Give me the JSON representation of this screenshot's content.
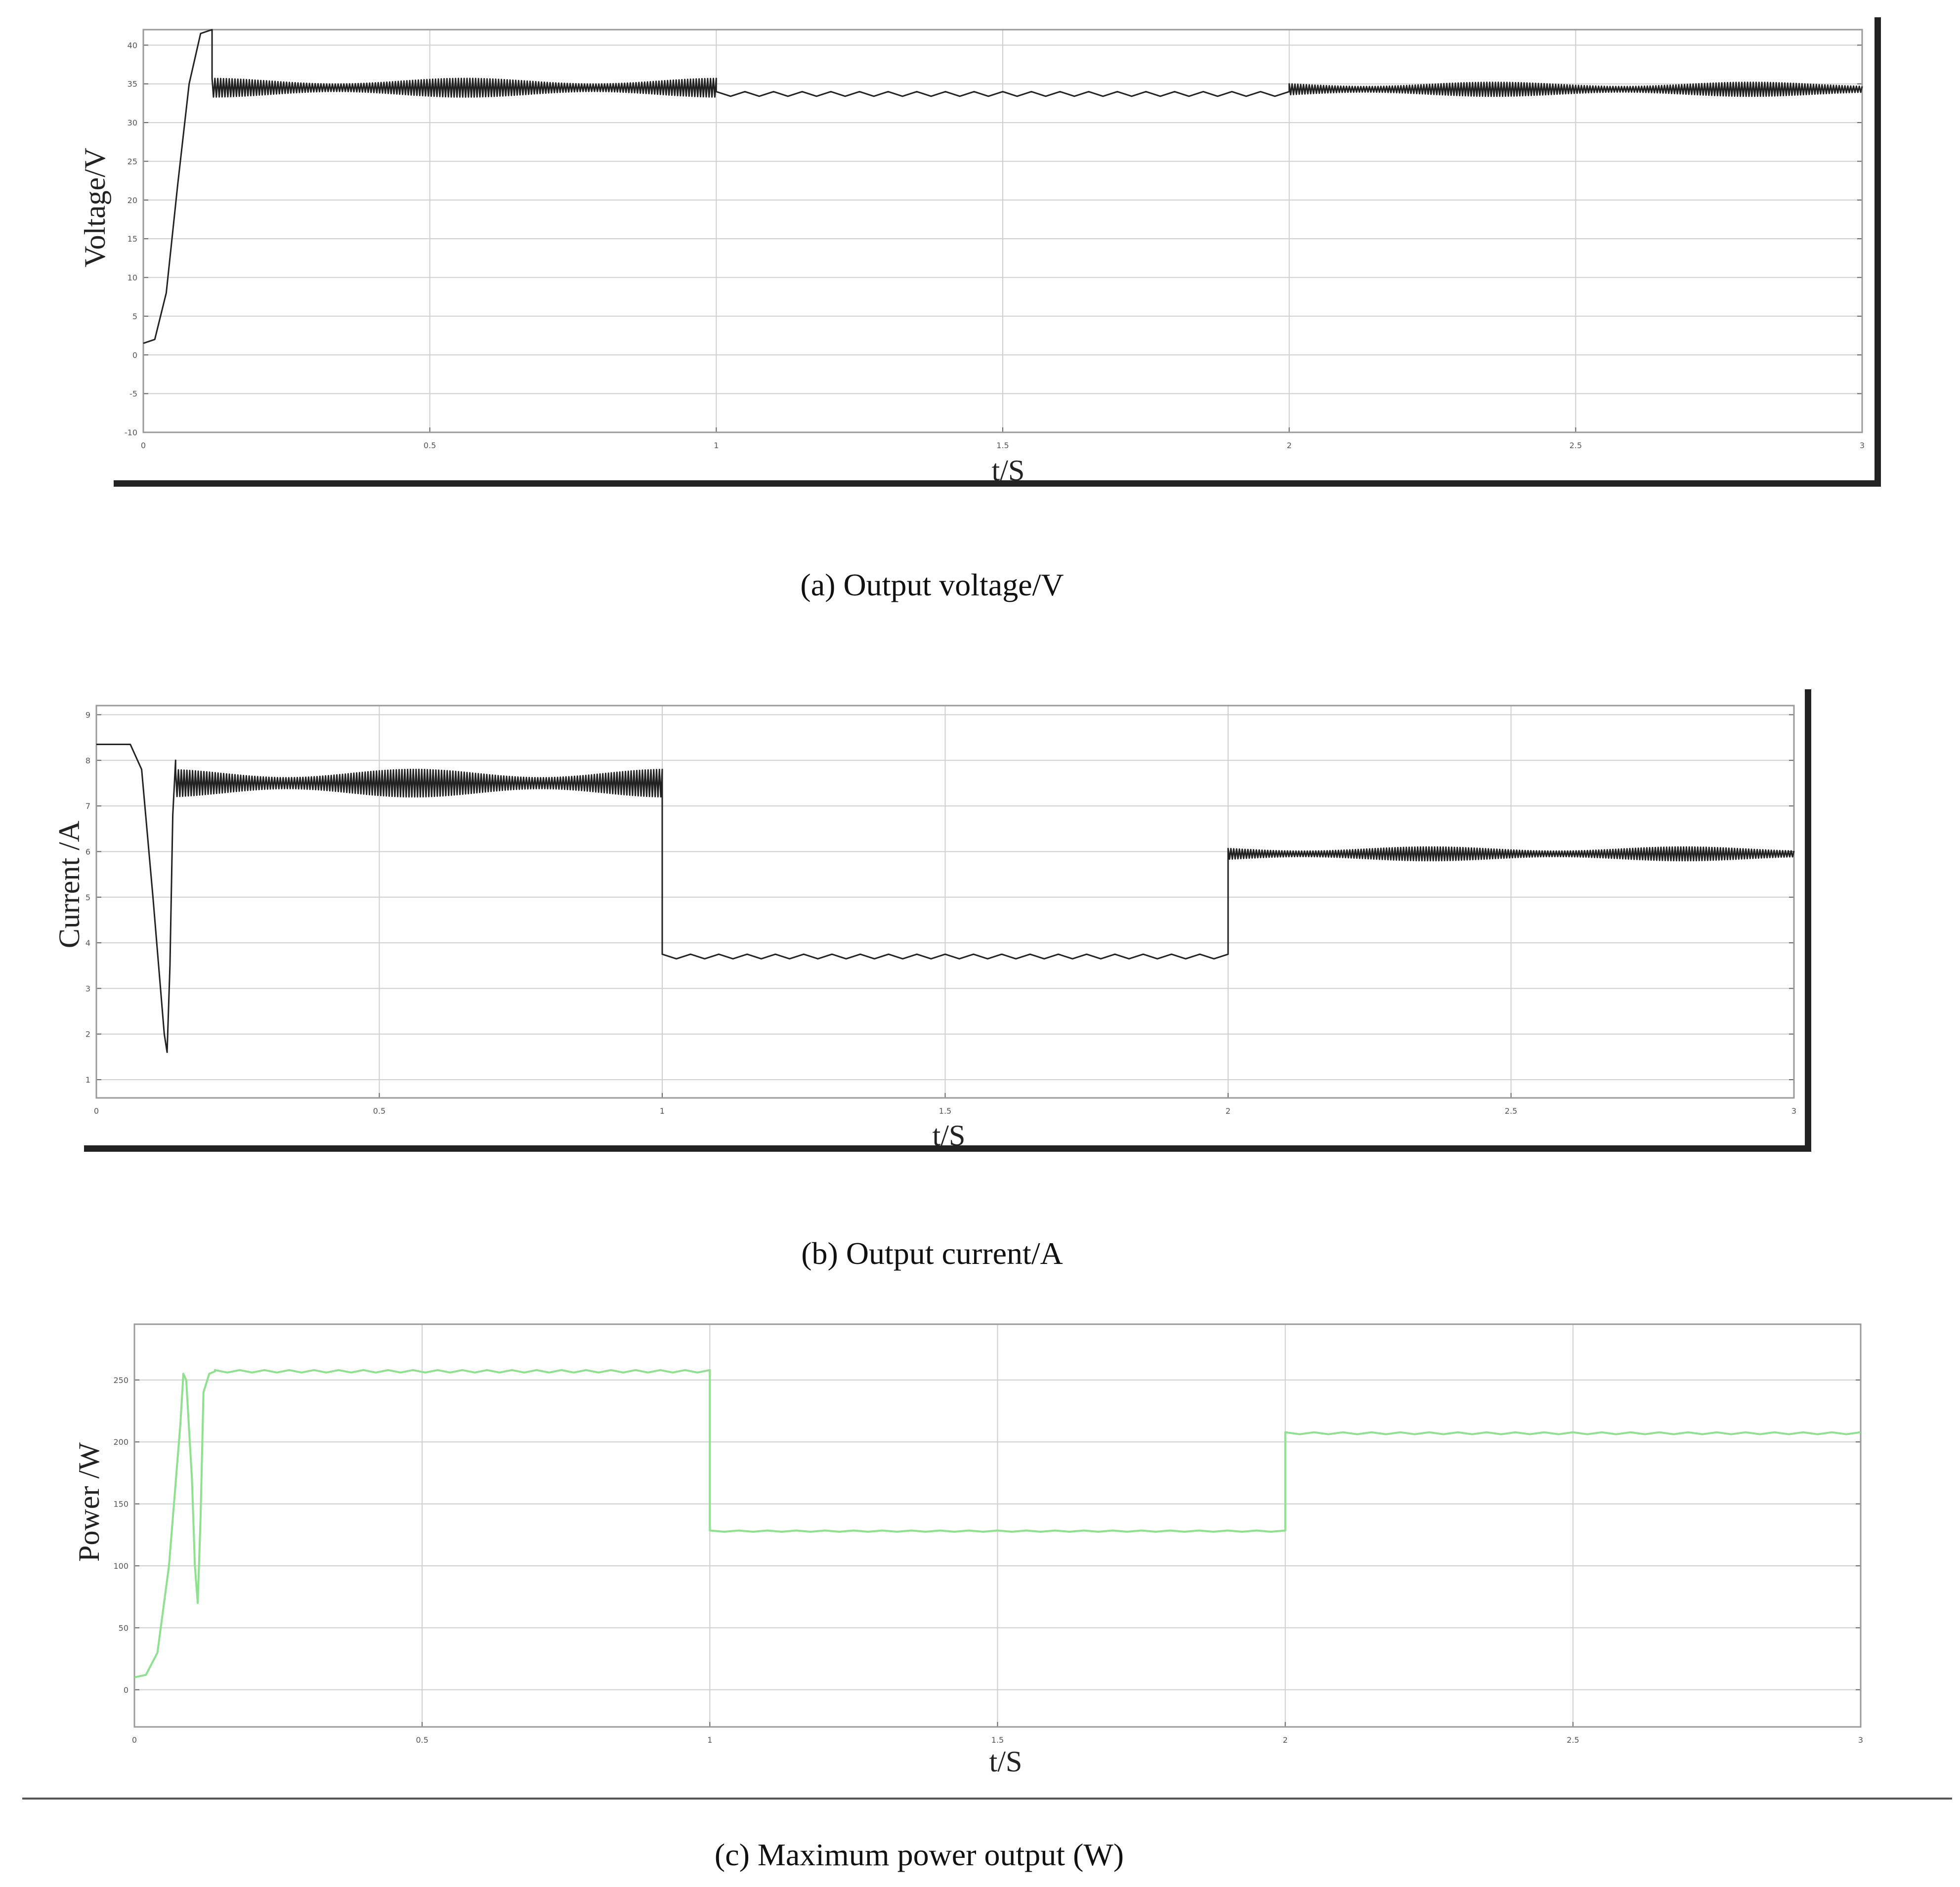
{
  "chart_data": [
    {
      "type": "line",
      "caption": "(a) Output voltage/V",
      "xlabel": "t/S",
      "ylabel": "Voltage/V",
      "xlim": [
        0,
        3
      ],
      "ylim": [
        -10,
        42
      ],
      "x_ticks": [
        "0",
        "0.5",
        "1",
        "1.5",
        "2",
        "2.5",
        "3"
      ],
      "y_ticks": [
        "-10",
        "-5",
        "0",
        "5",
        "10",
        "15",
        "20",
        "25",
        "30",
        "35",
        "40"
      ],
      "grid": true,
      "line_color": "#222222",
      "segments": [
        {
          "x_start": 0,
          "x_end": 0.12,
          "shape": "startup",
          "points": [
            [
              0,
              1.5
            ],
            [
              0.02,
              2
            ],
            [
              0.04,
              8
            ],
            [
              0.06,
              22
            ],
            [
              0.08,
              35
            ],
            [
              0.1,
              41.5
            ],
            [
              0.12,
              42
            ]
          ]
        },
        {
          "x_start": 0.12,
          "x_end": 1.0,
          "level": 34.5,
          "ripple": 1.2,
          "shape": "oscillating"
        },
        {
          "x_start": 1.0,
          "x_end": 2.0,
          "level": 33.7,
          "ripple": 0.3,
          "shape": "flat"
        },
        {
          "x_start": 2.0,
          "x_end": 3.0,
          "level": 34.3,
          "ripple": 0.9,
          "shape": "oscillating"
        }
      ]
    },
    {
      "type": "line",
      "caption": "(b) Output current/A",
      "xlabel": "t/S",
      "ylabel": "Current /A",
      "xlim": [
        0,
        3
      ],
      "ylim": [
        0.6,
        9.2
      ],
      "x_ticks": [
        "0",
        "0.5",
        "1",
        "1.5",
        "2",
        "2.5",
        "3"
      ],
      "y_ticks": [
        "1",
        "2",
        "3",
        "4",
        "5",
        "6",
        "7",
        "8",
        "9"
      ],
      "grid": true,
      "line_color": "#222222",
      "segments": [
        {
          "x_start": 0,
          "x_end": 0.13,
          "shape": "dip",
          "points": [
            [
              0,
              8.35
            ],
            [
              0.06,
              8.35
            ],
            [
              0.08,
              7.8
            ],
            [
              0.1,
              5
            ],
            [
              0.12,
              2
            ],
            [
              0.125,
              1.6
            ],
            [
              0.13,
              3.5
            ],
            [
              0.135,
              6.8
            ],
            [
              0.14,
              8
            ]
          ]
        },
        {
          "x_start": 0.14,
          "x_end": 1.0,
          "level": 7.5,
          "ripple": 0.3,
          "shape": "oscillating"
        },
        {
          "x_start": 1.0,
          "x_end": 2.0,
          "level": 3.7,
          "ripple": 0.05,
          "shape": "flat"
        },
        {
          "x_start": 2.0,
          "x_end": 3.0,
          "level": 5.95,
          "ripple": 0.15,
          "shape": "oscillating"
        }
      ]
    },
    {
      "type": "line",
      "caption": "(c) Maximum power output (W)",
      "xlabel": "t/S",
      "ylabel": "Power /W",
      "xlim": [
        0,
        3
      ],
      "ylim": [
        -30,
        295
      ],
      "x_ticks": [
        "0",
        "0.5",
        "1",
        "1.5",
        "2",
        "2.5",
        "3"
      ],
      "y_ticks": [
        "0",
        "50",
        "100",
        "150",
        "200",
        "250"
      ],
      "grid": true,
      "line_color": "#8fe08f",
      "segments": [
        {
          "x_start": 0,
          "x_end": 0.14,
          "shape": "startup",
          "points": [
            [
              0,
              10
            ],
            [
              0.02,
              12
            ],
            [
              0.04,
              30
            ],
            [
              0.06,
              100
            ],
            [
              0.08,
              215
            ],
            [
              0.085,
              255
            ],
            [
              0.09,
              250
            ],
            [
              0.1,
              170
            ],
            [
              0.105,
              100
            ],
            [
              0.11,
              70
            ],
            [
              0.115,
              140
            ],
            [
              0.12,
              240
            ],
            [
              0.13,
              255
            ],
            [
              0.14,
              257
            ]
          ]
        },
        {
          "x_start": 0.14,
          "x_end": 1.0,
          "level": 257,
          "ripple": 1,
          "shape": "flat"
        },
        {
          "x_start": 1.0,
          "x_end": 2.0,
          "level": 128,
          "ripple": 0.5,
          "shape": "flat"
        },
        {
          "x_start": 2.0,
          "x_end": 3.0,
          "level": 207,
          "ripple": 0.8,
          "shape": "flat"
        }
      ]
    }
  ]
}
